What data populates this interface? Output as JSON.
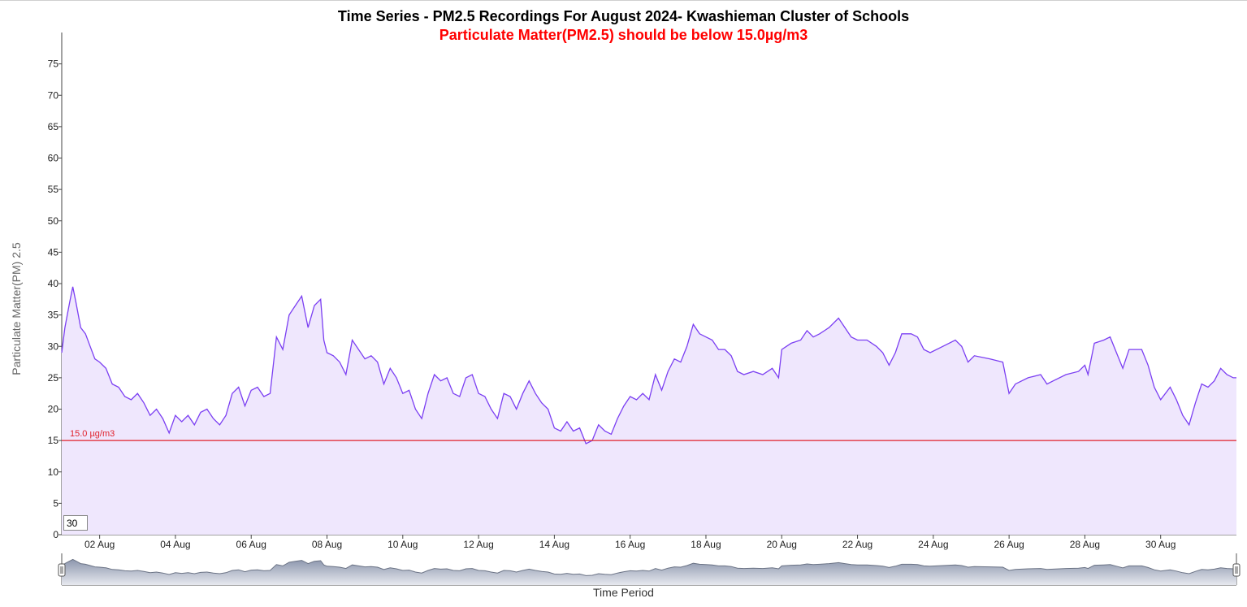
{
  "chart_data": {
    "type": "area",
    "title": "Time Series - PM2.5 Recordings For August 2024- Kwashieman Cluster of Schools",
    "subtitle": "Particulate Matter(PM2.5) should be below 15.0µg/m3",
    "xlabel": "Time Period",
    "ylabel": "Particulate Matter(PM) 2.5",
    "ylim": [
      0,
      80
    ],
    "yticks": [
      0,
      5,
      10,
      15,
      20,
      25,
      30,
      35,
      40,
      45,
      50,
      55,
      60,
      65,
      70,
      75
    ],
    "xlim": [
      "2024-08-01",
      "2024-09-01"
    ],
    "xticks": [
      {
        "date": "2024-08-02",
        "label": "02 Aug"
      },
      {
        "date": "2024-08-04",
        "label": "04 Aug"
      },
      {
        "date": "2024-08-06",
        "label": "06 Aug"
      },
      {
        "date": "2024-08-08",
        "label": "08 Aug"
      },
      {
        "date": "2024-08-10",
        "label": "10 Aug"
      },
      {
        "date": "2024-08-12",
        "label": "12 Aug"
      },
      {
        "date": "2024-08-14",
        "label": "14 Aug"
      },
      {
        "date": "2024-08-16",
        "label": "16 Aug"
      },
      {
        "date": "2024-08-18",
        "label": "18 Aug"
      },
      {
        "date": "2024-08-20",
        "label": "20 Aug"
      },
      {
        "date": "2024-08-22",
        "label": "22 Aug"
      },
      {
        "date": "2024-08-24",
        "label": "24 Aug"
      },
      {
        "date": "2024-08-26",
        "label": "26 Aug"
      },
      {
        "date": "2024-08-28",
        "label": "28 Aug"
      },
      {
        "date": "2024-08-30",
        "label": "30 Aug"
      }
    ],
    "threshold": {
      "value": 15.0,
      "label": "15.0 µg/m3",
      "color": "#e0202a"
    },
    "series": [
      {
        "line_color": "#7b3ff2",
        "fill_color": "#efe7fd",
        "points": [
          [
            "2024-08-01 00:00",
            29
          ],
          [
            "2024-08-01 02:00",
            33
          ],
          [
            "2024-08-01 05:00",
            37
          ],
          [
            "2024-08-01 07:00",
            39.5
          ],
          [
            "2024-08-01 09:00",
            37
          ],
          [
            "2024-08-01 12:00",
            33
          ],
          [
            "2024-08-01 15:00",
            32
          ],
          [
            "2024-08-01 18:00",
            30
          ],
          [
            "2024-08-01 21:00",
            28
          ],
          [
            "2024-08-02 00:00",
            27.5
          ],
          [
            "2024-08-02 04:00",
            26.5
          ],
          [
            "2024-08-02 08:00",
            24
          ],
          [
            "2024-08-02 12:00",
            23.5
          ],
          [
            "2024-08-02 16:00",
            22
          ],
          [
            "2024-08-02 20:00",
            21.5
          ],
          [
            "2024-08-03 00:00",
            22.5
          ],
          [
            "2024-08-03 04:00",
            21
          ],
          [
            "2024-08-03 08:00",
            19
          ],
          [
            "2024-08-03 12:00",
            20
          ],
          [
            "2024-08-03 16:00",
            18.5
          ],
          [
            "2024-08-03 20:00",
            16.2
          ],
          [
            "2024-08-04 00:00",
            19
          ],
          [
            "2024-08-04 04:00",
            18
          ],
          [
            "2024-08-04 08:00",
            19
          ],
          [
            "2024-08-04 12:00",
            17.5
          ],
          [
            "2024-08-04 16:00",
            19.5
          ],
          [
            "2024-08-04 20:00",
            20
          ],
          [
            "2024-08-05 00:00",
            18.5
          ],
          [
            "2024-08-05 04:00",
            17.5
          ],
          [
            "2024-08-05 08:00",
            19
          ],
          [
            "2024-08-05 12:00",
            22.5
          ],
          [
            "2024-08-05 16:00",
            23.5
          ],
          [
            "2024-08-05 20:00",
            20.5
          ],
          [
            "2024-08-06 00:00",
            23
          ],
          [
            "2024-08-06 04:00",
            23.5
          ],
          [
            "2024-08-06 08:00",
            22
          ],
          [
            "2024-08-06 12:00",
            22.5
          ],
          [
            "2024-08-06 16:00",
            31.5
          ],
          [
            "2024-08-06 20:00",
            29.5
          ],
          [
            "2024-08-07 00:00",
            35
          ],
          [
            "2024-08-07 04:00",
            36.5
          ],
          [
            "2024-08-07 08:00",
            38
          ],
          [
            "2024-08-07 12:00",
            33
          ],
          [
            "2024-08-07 16:00",
            36.5
          ],
          [
            "2024-08-07 20:00",
            37.5
          ],
          [
            "2024-08-07 22:00",
            31
          ],
          [
            "2024-08-08 00:00",
            29
          ],
          [
            "2024-08-08 04:00",
            28.5
          ],
          [
            "2024-08-08 08:00",
            27.5
          ],
          [
            "2024-08-08 12:00",
            25.5
          ],
          [
            "2024-08-08 16:00",
            31
          ],
          [
            "2024-08-08 20:00",
            29.5
          ],
          [
            "2024-08-09 00:00",
            28
          ],
          [
            "2024-08-09 04:00",
            28.5
          ],
          [
            "2024-08-09 08:00",
            27.5
          ],
          [
            "2024-08-09 12:00",
            24
          ],
          [
            "2024-08-09 16:00",
            26.5
          ],
          [
            "2024-08-09 20:00",
            25
          ],
          [
            "2024-08-10 00:00",
            22.5
          ],
          [
            "2024-08-10 04:00",
            23
          ],
          [
            "2024-08-10 08:00",
            20
          ],
          [
            "2024-08-10 12:00",
            18.5
          ],
          [
            "2024-08-10 16:00",
            22.5
          ],
          [
            "2024-08-10 20:00",
            25.5
          ],
          [
            "2024-08-11 00:00",
            24.5
          ],
          [
            "2024-08-11 04:00",
            25
          ],
          [
            "2024-08-11 08:00",
            22.5
          ],
          [
            "2024-08-11 12:00",
            22
          ],
          [
            "2024-08-11 16:00",
            25
          ],
          [
            "2024-08-11 20:00",
            25.5
          ],
          [
            "2024-08-12 00:00",
            22.5
          ],
          [
            "2024-08-12 04:00",
            22
          ],
          [
            "2024-08-12 08:00",
            20
          ],
          [
            "2024-08-12 12:00",
            18.5
          ],
          [
            "2024-08-12 16:00",
            22.5
          ],
          [
            "2024-08-12 20:00",
            22
          ],
          [
            "2024-08-13 00:00",
            20
          ],
          [
            "2024-08-13 04:00",
            22.5
          ],
          [
            "2024-08-13 08:00",
            24.5
          ],
          [
            "2024-08-13 12:00",
            22.5
          ],
          [
            "2024-08-13 16:00",
            21
          ],
          [
            "2024-08-13 20:00",
            20
          ],
          [
            "2024-08-14 00:00",
            17
          ],
          [
            "2024-08-14 04:00",
            16.5
          ],
          [
            "2024-08-14 08:00",
            18
          ],
          [
            "2024-08-14 12:00",
            16.5
          ],
          [
            "2024-08-14 16:00",
            17
          ],
          [
            "2024-08-14 20:00",
            14.5
          ],
          [
            "2024-08-15 00:00",
            15
          ],
          [
            "2024-08-15 04:00",
            17.5
          ],
          [
            "2024-08-15 08:00",
            16.5
          ],
          [
            "2024-08-15 12:00",
            16
          ],
          [
            "2024-08-15 16:00",
            18.5
          ],
          [
            "2024-08-15 20:00",
            20.5
          ],
          [
            "2024-08-16 00:00",
            22
          ],
          [
            "2024-08-16 04:00",
            21.5
          ],
          [
            "2024-08-16 08:00",
            22.5
          ],
          [
            "2024-08-16 12:00",
            21.5
          ],
          [
            "2024-08-16 16:00",
            25.5
          ],
          [
            "2024-08-16 20:00",
            23
          ],
          [
            "2024-08-17 00:00",
            26
          ],
          [
            "2024-08-17 04:00",
            28
          ],
          [
            "2024-08-17 08:00",
            27.5
          ],
          [
            "2024-08-17 12:00",
            30
          ],
          [
            "2024-08-17 16:00",
            33.5
          ],
          [
            "2024-08-17 20:00",
            32
          ],
          [
            "2024-08-18 00:00",
            31.5
          ],
          [
            "2024-08-18 04:00",
            31
          ],
          [
            "2024-08-18 08:00",
            29.5
          ],
          [
            "2024-08-18 12:00",
            29.5
          ],
          [
            "2024-08-18 16:00",
            28.5
          ],
          [
            "2024-08-18 20:00",
            26
          ],
          [
            "2024-08-19 00:00",
            25.5
          ],
          [
            "2024-08-19 06:00",
            26
          ],
          [
            "2024-08-19 12:00",
            25.5
          ],
          [
            "2024-08-19 18:00",
            26.5
          ],
          [
            "2024-08-19 22:00",
            25
          ],
          [
            "2024-08-20 00:00",
            29.5
          ],
          [
            "2024-08-20 06:00",
            30.5
          ],
          [
            "2024-08-20 12:00",
            31
          ],
          [
            "2024-08-20 16:00",
            32.5
          ],
          [
            "2024-08-20 20:00",
            31.5
          ],
          [
            "2024-08-21 00:00",
            32
          ],
          [
            "2024-08-21 06:00",
            33
          ],
          [
            "2024-08-21 12:00",
            34.5
          ],
          [
            "2024-08-21 16:00",
            33
          ],
          [
            "2024-08-21 20:00",
            31.5
          ],
          [
            "2024-08-22 00:00",
            31
          ],
          [
            "2024-08-22 06:00",
            31
          ],
          [
            "2024-08-22 12:00",
            30
          ],
          [
            "2024-08-22 16:00",
            29
          ],
          [
            "2024-08-22 20:00",
            27
          ],
          [
            "2024-08-23 00:00",
            29
          ],
          [
            "2024-08-23 04:00",
            32
          ],
          [
            "2024-08-23 10:00",
            32
          ],
          [
            "2024-08-23 14:00",
            31.5
          ],
          [
            "2024-08-23 18:00",
            29.5
          ],
          [
            "2024-08-23 22:00",
            29
          ],
          [
            "2024-08-24 06:00",
            30
          ],
          [
            "2024-08-24 14:00",
            31
          ],
          [
            "2024-08-24 18:00",
            30
          ],
          [
            "2024-08-24 22:00",
            27.5
          ],
          [
            "2024-08-25 02:00",
            28.5
          ],
          [
            "2024-08-25 12:00",
            28
          ],
          [
            "2024-08-25 20:00",
            27.5
          ],
          [
            "2024-08-26 00:00",
            22.5
          ],
          [
            "2024-08-26 04:00",
            24
          ],
          [
            "2024-08-26 12:00",
            25
          ],
          [
            "2024-08-26 20:00",
            25.5
          ],
          [
            "2024-08-27 00:00",
            24
          ],
          [
            "2024-08-27 04:00",
            24.5
          ],
          [
            "2024-08-27 12:00",
            25.5
          ],
          [
            "2024-08-27 20:00",
            26
          ],
          [
            "2024-08-28 00:00",
            27
          ],
          [
            "2024-08-28 02:00",
            25.5
          ],
          [
            "2024-08-28 06:00",
            30.5
          ],
          [
            "2024-08-28 12:00",
            31
          ],
          [
            "2024-08-28 16:00",
            31.5
          ],
          [
            "2024-08-28 20:00",
            29
          ],
          [
            "2024-08-29 00:00",
            26.5
          ],
          [
            "2024-08-29 04:00",
            29.5
          ],
          [
            "2024-08-29 12:00",
            29.5
          ],
          [
            "2024-08-29 16:00",
            27
          ],
          [
            "2024-08-29 20:00",
            23.5
          ],
          [
            "2024-08-30 00:00",
            21.5
          ],
          [
            "2024-08-30 06:00",
            23.5
          ],
          [
            "2024-08-30 10:00",
            21.5
          ],
          [
            "2024-08-30 14:00",
            19
          ],
          [
            "2024-08-30 18:00",
            17.5
          ],
          [
            "2024-08-30 22:00",
            21
          ],
          [
            "2024-08-31 02:00",
            24
          ],
          [
            "2024-08-31 06:00",
            23.5
          ],
          [
            "2024-08-31 10:00",
            24.5
          ],
          [
            "2024-08-31 14:00",
            26.5
          ],
          [
            "2024-08-31 18:00",
            25.5
          ],
          [
            "2024-08-31 22:00",
            25
          ],
          [
            "2024-09-01 00:00",
            25
          ]
        ]
      }
    ],
    "grid": false,
    "navigator": {
      "present": true,
      "range": [
        "2024-08-01",
        "2024-09-01"
      ]
    },
    "window_value": "30"
  }
}
